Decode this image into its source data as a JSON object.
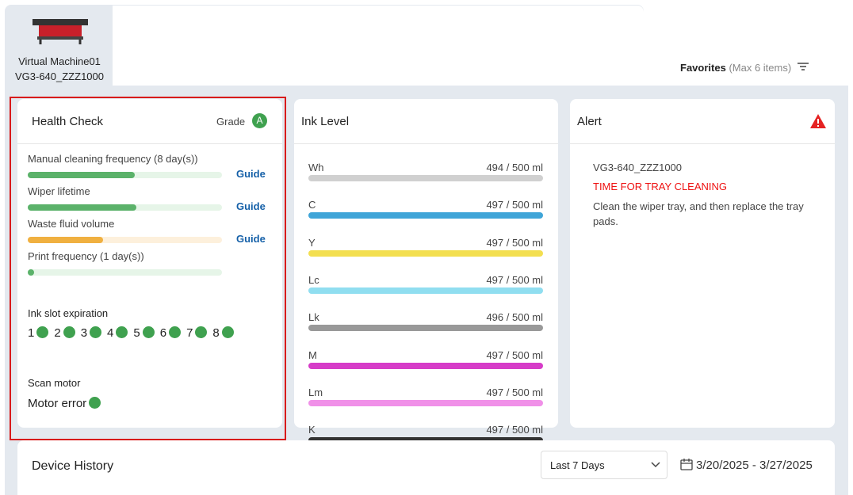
{
  "device": {
    "name": "Virtual Machine01",
    "model": "VG3-640_ZZZ1000"
  },
  "favorites": {
    "label": "Favorites",
    "note": "(Max 6 items)"
  },
  "health_check": {
    "title": "Health Check",
    "grade_label": "Grade",
    "grade": "A",
    "items": [
      {
        "label": "Manual cleaning frequency (8 day(s))",
        "link": "Guide"
      },
      {
        "label": "Wiper lifetime",
        "link": "Guide"
      },
      {
        "label": "Waste fluid volume",
        "link": "Guide"
      },
      {
        "label": "Print frequency (1 day(s))"
      }
    ],
    "ink_slot_title": "Ink slot expiration",
    "ink_slots": [
      1,
      2,
      3,
      4,
      5,
      6,
      7,
      8
    ],
    "scan_motor_title": "Scan motor",
    "motor_error": "Motor error"
  },
  "ink_level": {
    "title": "Ink Level",
    "inks": [
      {
        "name": "Wh",
        "level": "494 / 500 ml"
      },
      {
        "name": "C",
        "level": "497 / 500 ml"
      },
      {
        "name": "Y",
        "level": "497 / 500 ml"
      },
      {
        "name": "Lc",
        "level": "497 / 500 ml"
      },
      {
        "name": "Lk",
        "level": "496 / 500 ml"
      },
      {
        "name": "M",
        "level": "497 / 500 ml"
      },
      {
        "name": "Lm",
        "level": "497 / 500 ml"
      },
      {
        "name": "K",
        "level": "497 / 500 ml"
      }
    ]
  },
  "alert": {
    "title": "Alert",
    "model": "VG3-640_ZZZ1000",
    "message": "TIME FOR TRAY CLEANING",
    "detail": "Clean the wiper tray, and then replace the tray pads."
  },
  "device_history": {
    "title": "Device History",
    "range": "Last 7 Days",
    "dates": "3/20/2025 - 3/27/2025"
  }
}
